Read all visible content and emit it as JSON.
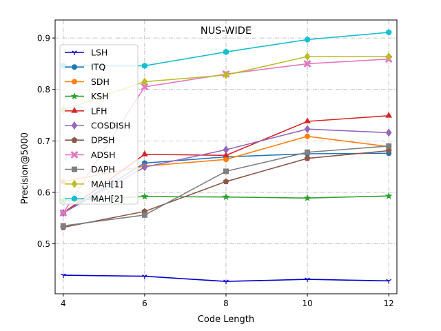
{
  "chart_data": {
    "type": "line",
    "title": "NUS-WIDE",
    "xlabel": "Code Length",
    "ylabel": "Precision@5000",
    "x": [
      4,
      6,
      8,
      10,
      12
    ],
    "xlim": [
      3.8,
      12.2
    ],
    "ylim": [
      0.403,
      0.935
    ],
    "xticks": [
      4,
      6,
      8,
      10,
      12
    ],
    "yticks": [
      0.5,
      0.6,
      0.7,
      0.8,
      0.9
    ],
    "ytick_labels": [
      "0.5",
      "0.6",
      "0.7",
      "0.8",
      "0.9"
    ],
    "grid": true,
    "legend_position": "upper-left",
    "series": [
      {
        "name": "LSH",
        "color": "#0000cc",
        "marker": "tri",
        "values": [
          0.439,
          0.437,
          0.427,
          0.431,
          0.428
        ]
      },
      {
        "name": "ITQ",
        "color": "#1f77b4",
        "marker": "circle",
        "values": [
          0.56,
          0.657,
          0.669,
          0.675,
          0.676
        ]
      },
      {
        "name": "SDH",
        "color": "#ff7f0e",
        "marker": "circle",
        "values": [
          0.621,
          0.651,
          0.664,
          0.709,
          0.689
        ]
      },
      {
        "name": "KSH",
        "color": "#2ca02c",
        "marker": "star",
        "values": [
          0.584,
          0.592,
          0.591,
          0.589,
          0.593
        ]
      },
      {
        "name": "LFH",
        "color": "#d62728",
        "marker": "triangle",
        "values": [
          0.56,
          0.674,
          0.672,
          0.738,
          0.749
        ]
      },
      {
        "name": "COSDISH",
        "color": "#9467bd",
        "marker": "diamond",
        "values": [
          0.56,
          0.649,
          0.683,
          0.723,
          0.716
        ]
      },
      {
        "name": "DPSH",
        "color": "#8c564b",
        "marker": "pentagon",
        "values": [
          0.532,
          0.563,
          0.621,
          0.666,
          0.681
        ]
      },
      {
        "name": "ADSH",
        "color": "#e377c2",
        "marker": "x",
        "values": [
          0.56,
          0.805,
          0.83,
          0.85,
          0.859
        ]
      },
      {
        "name": "DAPH",
        "color": "#7f7f7f",
        "marker": "square",
        "values": [
          0.535,
          0.556,
          0.641,
          0.678,
          0.69
        ]
      },
      {
        "name": "MAH[1]",
        "color": "#bcbd22",
        "marker": "diamond",
        "values": [
          0.76,
          0.815,
          0.828,
          0.864,
          0.864
        ]
      },
      {
        "name": "MAH[2]",
        "color": "#17becf",
        "marker": "hexagon",
        "values": [
          0.846,
          0.846,
          0.873,
          0.897,
          0.911
        ]
      }
    ]
  }
}
